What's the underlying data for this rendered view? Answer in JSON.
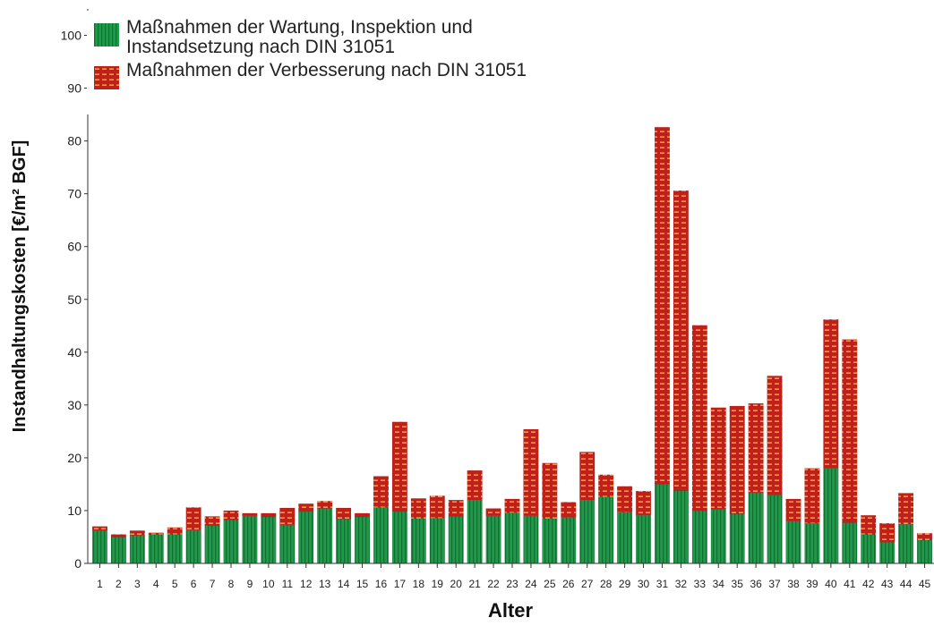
{
  "chart_data": {
    "type": "stacked_bar",
    "x_label": "Alter",
    "y_label": "Instandhaltungskosten [€/m² BGF]",
    "categories": [
      "1",
      "2",
      "3",
      "4",
      "5",
      "6",
      "7",
      "8",
      "9",
      "10",
      "11",
      "12",
      "13",
      "14",
      "15",
      "16",
      "17",
      "18",
      "19",
      "20",
      "21",
      "22",
      "23",
      "24",
      "25",
      "26",
      "27",
      "28",
      "29",
      "30",
      "31",
      "32",
      "33",
      "34",
      "35",
      "36",
      "37",
      "38",
      "39",
      "40",
      "41",
      "42",
      "43",
      "44",
      "45"
    ],
    "series": [
      {
        "name": "Maßnahmen der Wartung, Inspektion und Instandsetzung nach DIN 31051",
        "color": "#1e9a48",
        "values": [
          6.2,
          5.0,
          5.3,
          5.5,
          5.5,
          6.3,
          7.2,
          8.3,
          9.0,
          8.8,
          7.3,
          9.8,
          10.4,
          8.4,
          8.8,
          10.6,
          9.8,
          8.5,
          8.6,
          8.9,
          12.0,
          9.0,
          9.6,
          9.0,
          8.5,
          8.7,
          12.0,
          12.6,
          9.7,
          9.1,
          15.0,
          13.8,
          10.0,
          10.2,
          9.4,
          13.4,
          12.9,
          8.0,
          7.6,
          18.0,
          7.7,
          5.5,
          4.0,
          7.4,
          4.4
        ]
      },
      {
        "name": "Maßnahmen der Verbesserung nach DIN 31051",
        "color": "#c0201a",
        "values": [
          0.8,
          0.5,
          0.9,
          0.3,
          1.3,
          4.3,
          1.7,
          1.7,
          0.5,
          0.7,
          3.2,
          1.5,
          1.4,
          2.1,
          0.7,
          5.9,
          17.0,
          3.8,
          4.2,
          3.1,
          5.6,
          1.4,
          2.6,
          16.4,
          10.5,
          2.9,
          9.1,
          4.2,
          4.9,
          4.6,
          67.6,
          56.8,
          35.1,
          19.3,
          20.4,
          16.9,
          22.6,
          4.2,
          10.4,
          28.2,
          34.7,
          3.6,
          3.6,
          5.9,
          1.3
        ]
      }
    ],
    "ylim": [
      0,
      105
    ],
    "yticks": [
      0,
      10,
      20,
      30,
      40,
      50,
      60,
      70,
      80,
      90,
      100
    ],
    "legend": "upper left"
  }
}
